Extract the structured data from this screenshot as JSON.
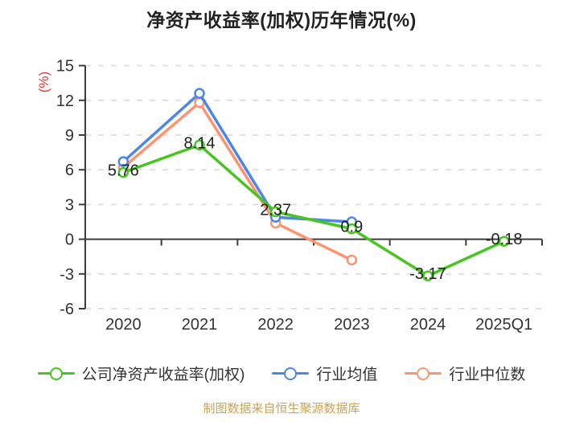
{
  "chart": {
    "title": "净资产收益率(加权)历年情况(%)",
    "ylabel": "(%)",
    "footer": "制图数据来自恒生聚源数据库"
  },
  "chart_data": {
    "type": "line",
    "title": "净资产收益率(加权)历年情况(%)",
    "xlabel": "",
    "ylabel": "(%)",
    "categories": [
      "2020",
      "2021",
      "2022",
      "2023",
      "2024",
      "2025Q1"
    ],
    "yticks": [
      15,
      12,
      9,
      6,
      3,
      0,
      -3,
      -6
    ],
    "ylim": [
      -6,
      15
    ],
    "grid": "horizontal-dashed",
    "legend_position": "bottom",
    "series": [
      {
        "id": "company-roe",
        "name": "公司净资产收益率(加权)",
        "color": "#46C61F",
        "values": [
          5.76,
          8.14,
          2.37,
          0.9,
          -3.17,
          -0.18
        ],
        "labels": [
          "5.76",
          "8.14",
          "2.37",
          "0.9",
          "-3.17",
          "-0.18"
        ],
        "show_labels": true
      },
      {
        "id": "industry-mean",
        "name": "行业均值",
        "color": "#4C87E8",
        "values": [
          6.7,
          12.6,
          1.9,
          1.5,
          null,
          null
        ],
        "show_labels": false
      },
      {
        "id": "industry-median",
        "name": "行业中位数",
        "color": "#FF9370",
        "values": [
          6.2,
          11.8,
          1.4,
          -1.8,
          null,
          null
        ],
        "show_labels": false
      }
    ],
    "colors": {
      "axis": "#3C3C3C",
      "grid": "#DFDFDF",
      "tick_text": "#333333",
      "value_label": "#222222",
      "title": "#222222",
      "ylabel": "#E53935",
      "footer": "#C9A353"
    }
  }
}
